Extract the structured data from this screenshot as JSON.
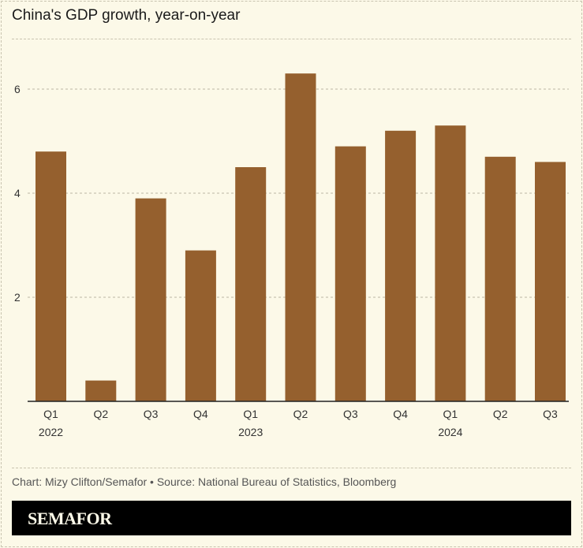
{
  "chart_data": {
    "type": "bar",
    "title": "China's GDP growth, year-on-year",
    "categories": [
      "Q1 2022",
      "Q2 2022",
      "Q3 2022",
      "Q4 2022",
      "Q1 2023",
      "Q2 2023",
      "Q3 2023",
      "Q4 2023",
      "Q1 2024",
      "Q2 2024",
      "Q3 2024"
    ],
    "tick_labels": [
      {
        "quarter": "Q1",
        "year": "2022"
      },
      {
        "quarter": "Q2",
        "year": ""
      },
      {
        "quarter": "Q3",
        "year": ""
      },
      {
        "quarter": "Q4",
        "year": ""
      },
      {
        "quarter": "Q1",
        "year": "2023"
      },
      {
        "quarter": "Q2",
        "year": ""
      },
      {
        "quarter": "Q3",
        "year": ""
      },
      {
        "quarter": "Q4",
        "year": ""
      },
      {
        "quarter": "Q1",
        "year": "2024"
      },
      {
        "quarter": "Q2",
        "year": ""
      },
      {
        "quarter": "Q3",
        "year": ""
      }
    ],
    "values": [
      4.8,
      0.4,
      3.9,
      2.9,
      4.5,
      6.3,
      4.9,
      5.2,
      5.3,
      4.7,
      4.6
    ],
    "xlabel": "",
    "ylabel": "",
    "ylim": [
      0,
      7
    ],
    "yticks": [
      2,
      4,
      6
    ],
    "grid": true,
    "bar_color": "#95602e"
  },
  "footer": {
    "credit": "Chart: Mizy Clifton/Semafor • Source: National Bureau of Statistics, Bloomberg",
    "logo": "SEMAFOR"
  }
}
